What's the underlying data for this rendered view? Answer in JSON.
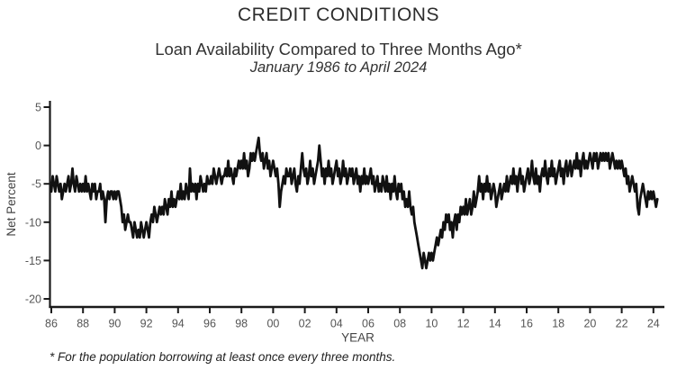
{
  "page": {
    "title": "CREDIT CONDITIONS",
    "subtitle": "Loan Availability Compared to Three Months Ago*",
    "period": "January 1986 to April 2024",
    "footnote": "* For the population borrowing at least once every three months."
  },
  "chart_data": {
    "type": "line",
    "title": "CREDIT CONDITIONS",
    "subtitle": "Loan Availability Compared to Three Months Ago*",
    "period_label": "January 1986 to April 2024",
    "xlabel": "YEAR",
    "ylabel": "Net Percent",
    "grid": false,
    "legend": "none",
    "line_color": "#111111",
    "axis_color": "#1a1a1a",
    "tick_label_color": "#555555",
    "axis_title_color": "#444444",
    "y_ticks": [
      5,
      0,
      -5,
      -10,
      -15,
      -20
    ],
    "ylim": [
      -21,
      6
    ],
    "x_tick_years": [
      1986,
      1988,
      1990,
      1992,
      1994,
      1996,
      1998,
      2000,
      2002,
      2004,
      2006,
      2008,
      2010,
      2012,
      2014,
      2016,
      2018,
      2020,
      2022,
      2024
    ],
    "x_tick_labels": [
      "86",
      "88",
      "90",
      "92",
      "94",
      "96",
      "98",
      "00",
      "02",
      "04",
      "06",
      "08",
      "10",
      "12",
      "14",
      "16",
      "18",
      "20",
      "22",
      "24"
    ],
    "x_start_year": 1986,
    "x_interval": "monthly",
    "x_end": "2024-04",
    "values": [
      -6,
      -4,
      -5,
      -6,
      -4,
      -5,
      -6,
      -5,
      -7,
      -6,
      -5,
      -6,
      -5,
      -4,
      -6,
      -5,
      -3,
      -5,
      -6,
      -4,
      -5,
      -6,
      -5,
      -6,
      -5,
      -6,
      -4,
      -6,
      -5,
      -6,
      -7,
      -5,
      -6,
      -5,
      -7,
      -6,
      -6,
      -5,
      -7,
      -6,
      -7,
      -10,
      -7,
      -6,
      -7,
      -6,
      -6,
      -7,
      -6,
      -7,
      -6,
      -6,
      -7,
      -8,
      -10,
      -9,
      -11,
      -10,
      -9,
      -10,
      -10,
      -11,
      -12,
      -10,
      -11,
      -12,
      -11,
      -12,
      -10,
      -11,
      -12,
      -11,
      -10,
      -11,
      -12,
      -10,
      -9,
      -10,
      -8,
      -9,
      -10,
      -9,
      -8,
      -9,
      -8,
      -9,
      -7,
      -8,
      -9,
      -7,
      -8,
      -6,
      -8,
      -7,
      -8,
      -7,
      -6,
      -7,
      -5,
      -7,
      -6,
      -7,
      -5,
      -6,
      -7,
      -3,
      -6,
      -5,
      -6,
      -5,
      -7,
      -5,
      -6,
      -4,
      -5,
      -6,
      -5,
      -6,
      -4,
      -5,
      -5,
      -4,
      -5,
      -3,
      -4,
      -5,
      -4,
      -3,
      -4,
      -5,
      -4,
      -4,
      -3,
      -4,
      -2,
      -4,
      -3,
      -4,
      -5,
      -3,
      -4,
      -3,
      -2,
      -3,
      -2,
      -3,
      -1,
      -3,
      -2,
      -4,
      -3,
      -1,
      -2,
      -1,
      -2,
      -1,
      0,
      1,
      -1,
      -2,
      -1,
      -3,
      -2,
      -1,
      -3,
      -2,
      -4,
      -3,
      -2,
      -3,
      -4,
      -3,
      -5,
      -8,
      -6,
      -5,
      -4,
      -5,
      -3,
      -4,
      -4,
      -3,
      -5,
      -4,
      -3,
      -5,
      -6,
      -4,
      -5,
      -3,
      -1,
      -3,
      -4,
      -3,
      -5,
      -4,
      -2,
      -4,
      -3,
      -5,
      -4,
      -3,
      -2,
      0,
      -2,
      -4,
      -3,
      -5,
      -3,
      -4,
      -2,
      -4,
      -3,
      -5,
      -4,
      -3,
      -2,
      -4,
      -3,
      -5,
      -4,
      -2,
      -4,
      -3,
      -5,
      -4,
      -3,
      -4,
      -3,
      -5,
      -4,
      -3,
      -5,
      -4,
      -6,
      -4,
      -5,
      -3,
      -5,
      -4,
      -5,
      -4,
      -3,
      -5,
      -4,
      -6,
      -5,
      -4,
      -6,
      -5,
      -6,
      -4,
      -5,
      -6,
      -4,
      -6,
      -5,
      -7,
      -5,
      -6,
      -4,
      -6,
      -7,
      -5,
      -6,
      -5,
      -7,
      -6,
      -8,
      -7,
      -8,
      -6,
      -8,
      -9,
      -8,
      -10,
      -11,
      -12,
      -13,
      -14,
      -15,
      -16,
      -14,
      -15,
      -16,
      -15,
      -14,
      -15,
      -14,
      -15,
      -14,
      -13,
      -12,
      -13,
      -12,
      -11,
      -12,
      -10,
      -11,
      -9,
      -10,
      -9,
      -11,
      -10,
      -12,
      -10,
      -9,
      -11,
      -9,
      -10,
      -8,
      -9,
      -8,
      -9,
      -7,
      -9,
      -8,
      -7,
      -9,
      -8,
      -6,
      -8,
      -7,
      -6,
      -4,
      -6,
      -5,
      -7,
      -5,
      -6,
      -4,
      -6,
      -5,
      -7,
      -6,
      -5,
      -6,
      -8,
      -7,
      -6,
      -5,
      -7,
      -6,
      -5,
      -6,
      -4,
      -6,
      -5,
      -4,
      -5,
      -3,
      -5,
      -4,
      -6,
      -4,
      -3,
      -5,
      -4,
      -6,
      -5,
      -4,
      -3,
      -5,
      -4,
      -2,
      -4,
      -5,
      -3,
      -5,
      -4,
      -6,
      -4,
      -3,
      -4,
      -2,
      -4,
      -5,
      -3,
      -4,
      -2,
      -4,
      -3,
      -5,
      -4,
      -3,
      -2,
      -4,
      -3,
      -5,
      -3,
      -2,
      -4,
      -3,
      -2,
      -4,
      -3,
      -2,
      -3,
      -1,
      -3,
      -2,
      -4,
      -2,
      -1,
      -3,
      -2,
      -3,
      -2,
      -1,
      -2,
      -3,
      -1,
      -2,
      -1,
      -3,
      -2,
      -1,
      -2,
      -1,
      -2,
      -1,
      -2,
      -1,
      -3,
      -2,
      -1,
      -2,
      -3,
      -2,
      -3,
      -2,
      -3,
      -2,
      -3,
      -4,
      -3,
      -5,
      -4,
      -6,
      -5,
      -4,
      -5,
      -6,
      -5,
      -8,
      -9,
      -7,
      -6,
      -5,
      -6,
      -7,
      -8,
      -6,
      -7,
      -6,
      -7,
      -6,
      -7,
      -8,
      -7
    ]
  }
}
